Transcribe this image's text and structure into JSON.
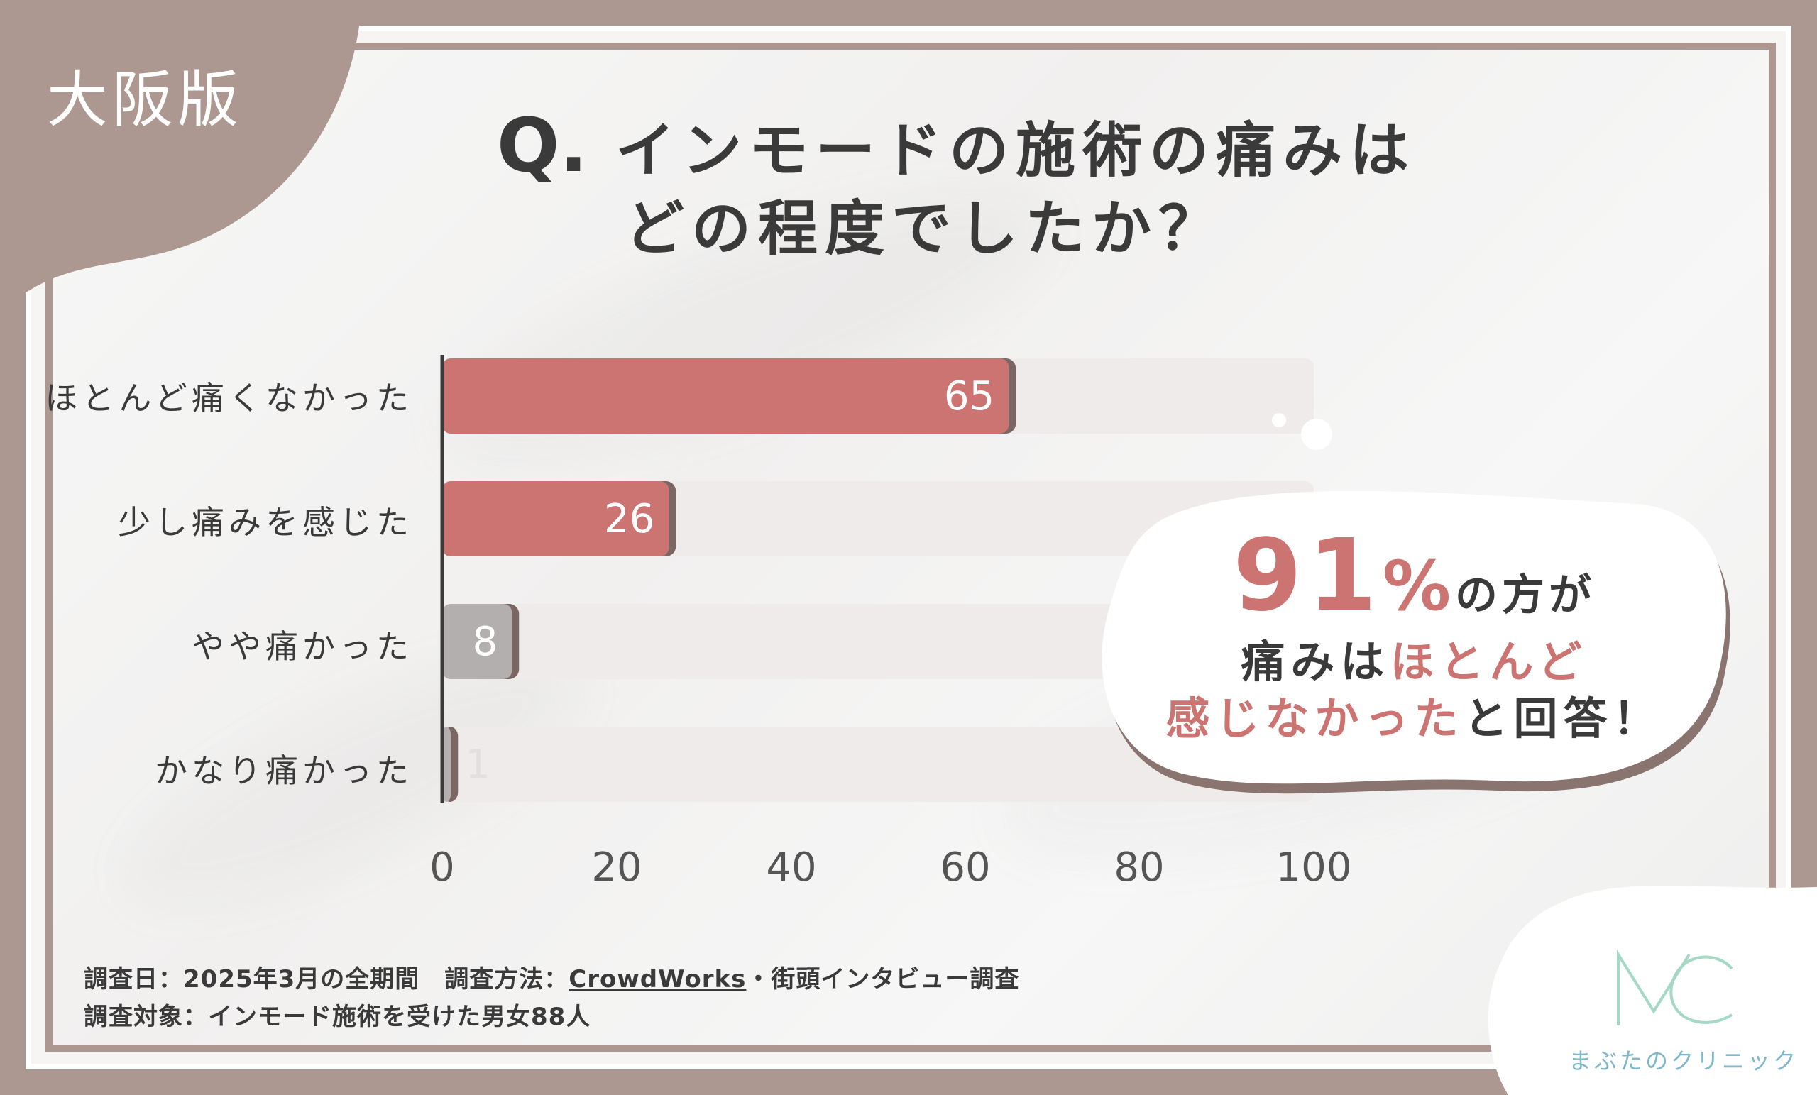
{
  "badge": "大阪版",
  "title": {
    "q": "Q.",
    "line1": "インモードの施術の痛みは",
    "line2": "どの程度でしたか？"
  },
  "chart_data": {
    "type": "bar",
    "orientation": "horizontal",
    "categories": [
      "ほとんど痛くなかった",
      "少し痛みを感じた",
      "やや痛かった",
      "かなり痛かった"
    ],
    "values": [
      65,
      26,
      8,
      1
    ],
    "xlim": [
      0,
      100
    ],
    "xticks": [
      "0",
      "20",
      "40",
      "60",
      "80",
      "100"
    ],
    "colors": {
      "highlight": "#cc7471",
      "muted": "#b3afae",
      "track": "#efebea"
    },
    "grid": false
  },
  "callout": {
    "pct": "91",
    "pct_sign": "%",
    "line1_rest": "の方が",
    "line2_a": "痛みは",
    "line2_b": "ほとんど",
    "line3_a": "感じなかった",
    "line3_b": "と回答！"
  },
  "footer": {
    "line1_a": "調査日：2025年3月の全期間　調査方法：",
    "line1_link": "CrowdWorks",
    "line1_b": "・街頭インタビュー調査",
    "line2": "調査対象：インモード施術を受けた男女88人"
  },
  "logo": {
    "mark": "MC",
    "name": "まぶたのクリニック"
  }
}
